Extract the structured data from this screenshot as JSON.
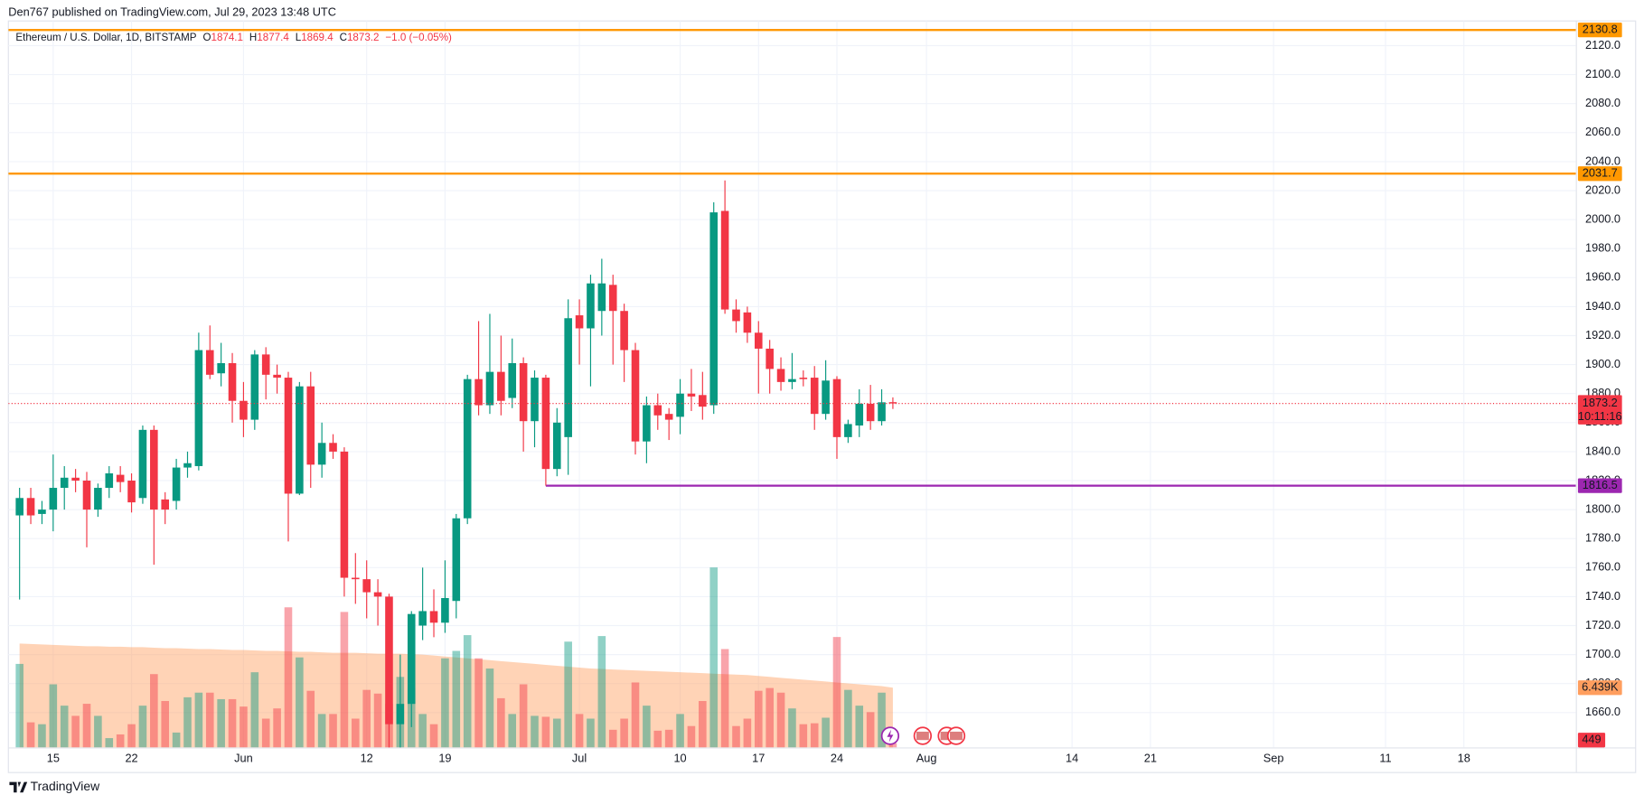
{
  "header": {
    "text": "Den767 published on TradingView.com, Jul 29, 2023 13:48 UTC"
  },
  "footer": {
    "brand": "TradingView"
  },
  "chart_data": {
    "type": "candlestick",
    "legend_title": "Ethereum / U.S. Dollar, 1D, BITSTAMP",
    "legend_prefixes": [
      "O",
      "H",
      "L",
      "C"
    ],
    "change_label": "−1.0 (−0.05%)",
    "countdown": "10:11:16",
    "up_color": "#089981",
    "down_color": "#f23645",
    "volume_ma_color": "#ff9e5e",
    "grid": true,
    "x": [
      "2023-05-12",
      "2023-05-13",
      "2023-05-14",
      "2023-05-15",
      "2023-05-16",
      "2023-05-17",
      "2023-05-18",
      "2023-05-19",
      "2023-05-20",
      "2023-05-21",
      "2023-05-22",
      "2023-05-23",
      "2023-05-24",
      "2023-05-25",
      "2023-05-26",
      "2023-05-27",
      "2023-05-28",
      "2023-05-29",
      "2023-05-30",
      "2023-05-31",
      "2023-06-01",
      "2023-06-02",
      "2023-06-03",
      "2023-06-04",
      "2023-06-05",
      "2023-06-06",
      "2023-06-07",
      "2023-06-08",
      "2023-06-09",
      "2023-06-10",
      "2023-06-11",
      "2023-06-12",
      "2023-06-13",
      "2023-06-14",
      "2023-06-15",
      "2023-06-16",
      "2023-06-17",
      "2023-06-18",
      "2023-06-19",
      "2023-06-20",
      "2023-06-21",
      "2023-06-22",
      "2023-06-23",
      "2023-06-24",
      "2023-06-25",
      "2023-06-26",
      "2023-06-27",
      "2023-06-28",
      "2023-06-29",
      "2023-06-30",
      "2023-07-01",
      "2023-07-02",
      "2023-07-03",
      "2023-07-04",
      "2023-07-05",
      "2023-07-06",
      "2023-07-07",
      "2023-07-08",
      "2023-07-09",
      "2023-07-10",
      "2023-07-11",
      "2023-07-12",
      "2023-07-13",
      "2023-07-14",
      "2023-07-15",
      "2023-07-16",
      "2023-07-17",
      "2023-07-18",
      "2023-07-19",
      "2023-07-20",
      "2023-07-21",
      "2023-07-22",
      "2023-07-23",
      "2023-07-24",
      "2023-07-25",
      "2023-07-26",
      "2023-07-27",
      "2023-07-28",
      "2023-07-29"
    ],
    "open": [
      1796,
      1808,
      1797,
      1800,
      1815,
      1822,
      1820,
      1800,
      1815,
      1824,
      1820,
      1808,
      1855,
      1807,
      1806,
      1829,
      1830,
      1910,
      1894,
      1901,
      1875,
      1862,
      1907,
      1893,
      1891,
      1811,
      1885,
      1831,
      1846,
      1840,
      1753,
      1752,
      1743,
      1740,
      1652,
      1666,
      1720,
      1730,
      1722,
      1737,
      1794,
      1890,
      1872,
      1895,
      1877,
      1901,
      1861,
      1891,
      1828,
      1850,
      1934,
      1925,
      1937,
      1955,
      1937,
      1910,
      1847,
      1872,
      1866,
      1864,
      1880,
      1879,
      1872,
      2006,
      1938,
      1936,
      1922,
      1911,
      1897,
      1888,
      1891,
      1891,
      1866,
      1890,
      1850,
      1858,
      1873,
      1861,
      1874.1
    ],
    "high": [
      1815,
      1815,
      1806,
      1838,
      1830,
      1828,
      1826,
      1818,
      1830,
      1830,
      1825,
      1858,
      1858,
      1812,
      1835,
      1840,
      1922,
      1927,
      1915,
      1908,
      1888,
      1910,
      1912,
      1900,
      1895,
      1888,
      1895,
      1860,
      1852,
      1843,
      1770,
      1765,
      1752,
      1742,
      1700,
      1730,
      1760,
      1745,
      1765,
      1797,
      1893,
      1930,
      1935,
      1920,
      1918,
      1905,
      1896,
      1893,
      1870,
      1945,
      1945,
      1962,
      1973,
      1962,
      1942,
      1915,
      1878,
      1880,
      1870,
      1890,
      1897,
      1895,
      2012,
      2027,
      1945,
      1940,
      1930,
      1917,
      1905,
      1908,
      1896,
      1899,
      1903,
      1892,
      1862,
      1883,
      1886,
      1883,
      1877.4
    ],
    "low": [
      1738,
      1790,
      1790,
      1785,
      1800,
      1812,
      1774,
      1795,
      1808,
      1812,
      1798,
      1804,
      1762,
      1790,
      1800,
      1822,
      1827,
      1890,
      1885,
      1860,
      1850,
      1855,
      1876,
      1880,
      1778,
      1810,
      1815,
      1822,
      1835,
      1740,
      1735,
      1725,
      1720,
      1626,
      1630,
      1650,
      1710,
      1712,
      1715,
      1725,
      1790,
      1865,
      1866,
      1865,
      1870,
      1840,
      1843,
      1816.5,
      1823,
      1824,
      1900,
      1885,
      1920,
      1900,
      1888,
      1838,
      1832,
      1855,
      1848,
      1852,
      1868,
      1862,
      1866,
      1935,
      1922,
      1915,
      1880,
      1880,
      1882,
      1883,
      1885,
      1855,
      1862,
      1835,
      1846,
      1850,
      1855,
      1858,
      1869.4
    ],
    "close": [
      1808,
      1796,
      1800,
      1815,
      1822,
      1820,
      1800,
      1815,
      1825,
      1819,
      1805,
      1855,
      1800,
      1800,
      1829,
      1832,
      1910,
      1893,
      1901,
      1875,
      1862,
      1907,
      1893,
      1891,
      1811,
      1885,
      1831,
      1846,
      1840,
      1753,
      1752,
      1743,
      1740,
      1652,
      1666,
      1728,
      1730,
      1722,
      1739,
      1794,
      1890,
      1872,
      1895,
      1875,
      1901,
      1861,
      1891,
      1828,
      1860,
      1932,
      1925,
      1956,
      1956,
      1937,
      1910,
      1847,
      1872,
      1865,
      1862,
      1880,
      1878,
      1871,
      2005,
      1938,
      1930,
      1922,
      1911,
      1897,
      1888,
      1890,
      1890,
      1866,
      1889,
      1850,
      1859,
      1873,
      1861,
      1874,
      1873.2
    ],
    "volume": [
      9000,
      2700,
      2500,
      6800,
      4500,
      3400,
      4700,
      3400,
      1000,
      1400,
      2500,
      4500,
      7900,
      5000,
      1600,
      5400,
      5900,
      5900,
      5200,
      5200,
      4400,
      8100,
      3100,
      4200,
      15100,
      9700,
      6100,
      3600,
      3600,
      14600,
      3100,
      6200,
      5800,
      4700,
      7600,
      6400,
      3600,
      2500,
      9600,
      10400,
      12100,
      9600,
      8500,
      5300,
      3600,
      6800,
      3400,
      3300,
      3100,
      11400,
      3600,
      3100,
      12000,
      1900,
      3100,
      7000,
      4500,
      1800,
      1900,
      3600,
      2300,
      5000,
      19400,
      10600,
      2300,
      3100,
      6100,
      6400,
      5900,
      4200,
      2500,
      2600,
      3200,
      11900,
      6200,
      4500,
      3800,
      5900,
      449
    ],
    "volume_ma": [
      11200,
      11150,
      11100,
      11050,
      11000,
      10950,
      10900,
      10900,
      10850,
      10850,
      10800,
      10800,
      10750,
      10700,
      10700,
      10650,
      10600,
      10600,
      10550,
      10500,
      10500,
      10450,
      10400,
      10400,
      10350,
      10300,
      10300,
      10250,
      10200,
      10200,
      10200,
      10150,
      10100,
      10100,
      10100,
      10050,
      10000,
      9900,
      9800,
      9700,
      9600,
      9500,
      9400,
      9300,
      9200,
      9100,
      9000,
      8900,
      8800,
      8700,
      8600,
      8500,
      8450,
      8400,
      8350,
      8300,
      8250,
      8200,
      8150,
      8100,
      8050,
      8000,
      7950,
      7900,
      7850,
      7800,
      7700,
      7600,
      7500,
      7400,
      7300,
      7200,
      7100,
      7000,
      6900,
      6800,
      6700,
      6600,
      6439
    ],
    "volume_ma_last_label": "6.439K",
    "levels": [
      {
        "value": 2130.8,
        "color": "#ff9800"
      },
      {
        "value": 2031.7,
        "color": "#ff9800"
      },
      {
        "value": 1816.5,
        "color": "#9c27b0",
        "from": "2023-06-28"
      }
    ],
    "xlim": [
      "2023-05-11",
      "2023-09-28"
    ],
    "xticks": [
      {
        "value": "2023-05-15",
        "label": "15"
      },
      {
        "value": "2023-05-22",
        "label": "22"
      },
      {
        "value": "2023-06-01",
        "label": "Jun"
      },
      {
        "value": "2023-06-12",
        "label": "12"
      },
      {
        "value": "2023-06-19",
        "label": "19"
      },
      {
        "value": "2023-07-01",
        "label": "Jul"
      },
      {
        "value": "2023-07-10",
        "label": "10"
      },
      {
        "value": "2023-07-17",
        "label": "17"
      },
      {
        "value": "2023-07-24",
        "label": "24"
      },
      {
        "value": "2023-08-01",
        "label": "Aug"
      },
      {
        "value": "2023-08-14",
        "label": "14"
      },
      {
        "value": "2023-08-21",
        "label": "21"
      },
      {
        "value": "2023-09-01",
        "label": "Sep"
      },
      {
        "value": "2023-09-11",
        "label": "11"
      },
      {
        "value": "2023-09-18",
        "label": "18"
      }
    ],
    "ylim": [
      1636,
      2137
    ],
    "volume_ylim": [
      0,
      78300
    ],
    "yticks": [
      {
        "value": 1660,
        "label": "1660.0"
      },
      {
        "value": 1680,
        "label": "1680.0"
      },
      {
        "value": 1700,
        "label": "1700.0"
      },
      {
        "value": 1720,
        "label": "1720.0"
      },
      {
        "value": 1740,
        "label": "1740.0"
      },
      {
        "value": 1760,
        "label": "1760.0"
      },
      {
        "value": 1780,
        "label": "1780.0"
      },
      {
        "value": 1800,
        "label": "1800.0"
      },
      {
        "value": 1820,
        "label": "1820.0"
      },
      {
        "value": 1840,
        "label": "1840.0"
      },
      {
        "value": 1860,
        "label": "1860.0"
      },
      {
        "value": 1880,
        "label": "1880.0"
      },
      {
        "value": 1900,
        "label": "1900.0"
      },
      {
        "value": 1920,
        "label": "1920.0"
      },
      {
        "value": 1940,
        "label": "1940.0"
      },
      {
        "value": 1960,
        "label": "1960.0"
      },
      {
        "value": 1980,
        "label": "1980.0"
      },
      {
        "value": 2000,
        "label": "2000.0"
      },
      {
        "value": 2020,
        "label": "2020.0"
      },
      {
        "value": 2040,
        "label": "2040.0"
      },
      {
        "value": 2060,
        "label": "2060.0"
      },
      {
        "value": 2080,
        "label": "2080.0"
      },
      {
        "value": 2100,
        "label": "2100.0"
      },
      {
        "value": 2120,
        "label": "2120.0"
      }
    ]
  }
}
